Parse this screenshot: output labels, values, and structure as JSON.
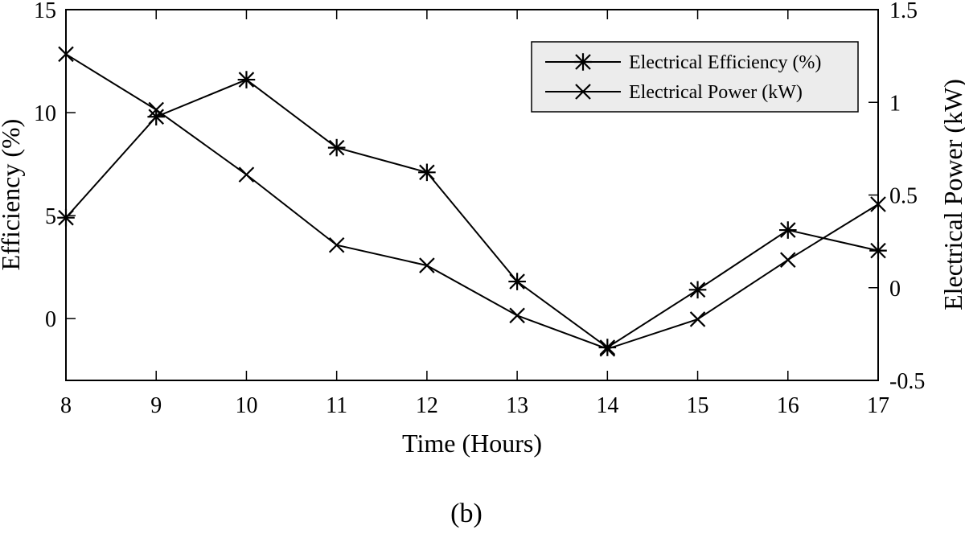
{
  "chart_data": {
    "type": "line",
    "x": [
      8,
      9,
      10,
      11,
      12,
      13,
      14,
      15,
      16,
      17
    ],
    "x_ticks": [
      "8",
      "9",
      "10",
      "11",
      "12",
      "13",
      "14",
      "15",
      "16",
      "17"
    ],
    "xlim": [
      8,
      17
    ],
    "xlabel": "Time (Hours)",
    "ylabel": "Efficiency (%)",
    "ylim": [
      -3,
      15
    ],
    "y_ticks": [
      "0",
      "5",
      "10",
      "15"
    ],
    "y2label": "Electrical Power (kW)",
    "y2lim": [
      -0.5,
      1.5
    ],
    "y2_ticks": [
      "-0.5",
      "0",
      "0.5",
      "1",
      "1.5"
    ],
    "series": [
      {
        "name": "Electrical Efficiency (%)",
        "axis": "left",
        "marker": "asterisk",
        "values": [
          4.9,
          9.8,
          11.6,
          8.3,
          7.1,
          1.8,
          -1.4,
          1.4,
          4.3,
          3.3
        ]
      },
      {
        "name": "Electrical Power (kW)",
        "axis": "right",
        "marker": "x",
        "values": [
          1.26,
          0.96,
          0.61,
          0.23,
          0.12,
          -0.15,
          -0.33,
          -0.17,
          0.15,
          0.45
        ]
      }
    ],
    "legend_position": "top-right",
    "grid": false,
    "caption": "(b)"
  }
}
